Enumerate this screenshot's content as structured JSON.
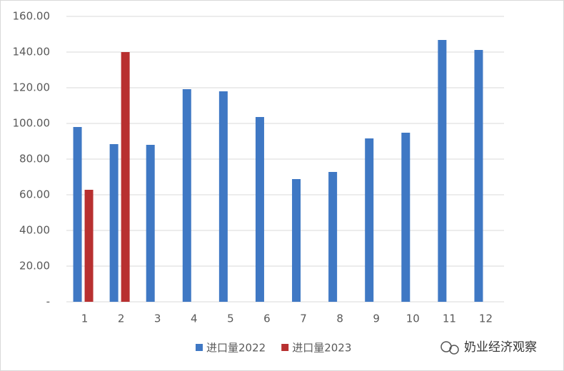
{
  "chart_data": {
    "type": "bar",
    "categories": [
      "1",
      "2",
      "3",
      "4",
      "5",
      "6",
      "7",
      "8",
      "9",
      "10",
      "11",
      "12"
    ],
    "series": [
      {
        "name": "进口量2022",
        "color": "#3f78c4",
        "values": [
          98,
          88.4,
          88,
          119.2,
          118,
          103.6,
          68.8,
          72.8,
          91.6,
          94.8,
          146.8,
          141.2
        ]
      },
      {
        "name": "进口量2023",
        "color": "#b83030",
        "values": [
          62.8,
          140,
          null,
          null,
          null,
          null,
          null,
          null,
          null,
          null,
          null,
          null
        ]
      }
    ],
    "ylim": [
      0,
      160
    ],
    "yticks": [
      {
        "value": 0,
        "label": "-"
      },
      {
        "value": 20,
        "label": "20.00"
      },
      {
        "value": 40,
        "label": "40.00"
      },
      {
        "value": 60,
        "label": "60.00"
      },
      {
        "value": 80,
        "label": "80.00"
      },
      {
        "value": 100,
        "label": "100.00"
      },
      {
        "value": 120,
        "label": "120.00"
      },
      {
        "value": 140,
        "label": "140.00"
      },
      {
        "value": 160,
        "label": "160.00"
      }
    ],
    "grid": true,
    "legend": "bottom"
  },
  "watermark": "奶业经济观察"
}
